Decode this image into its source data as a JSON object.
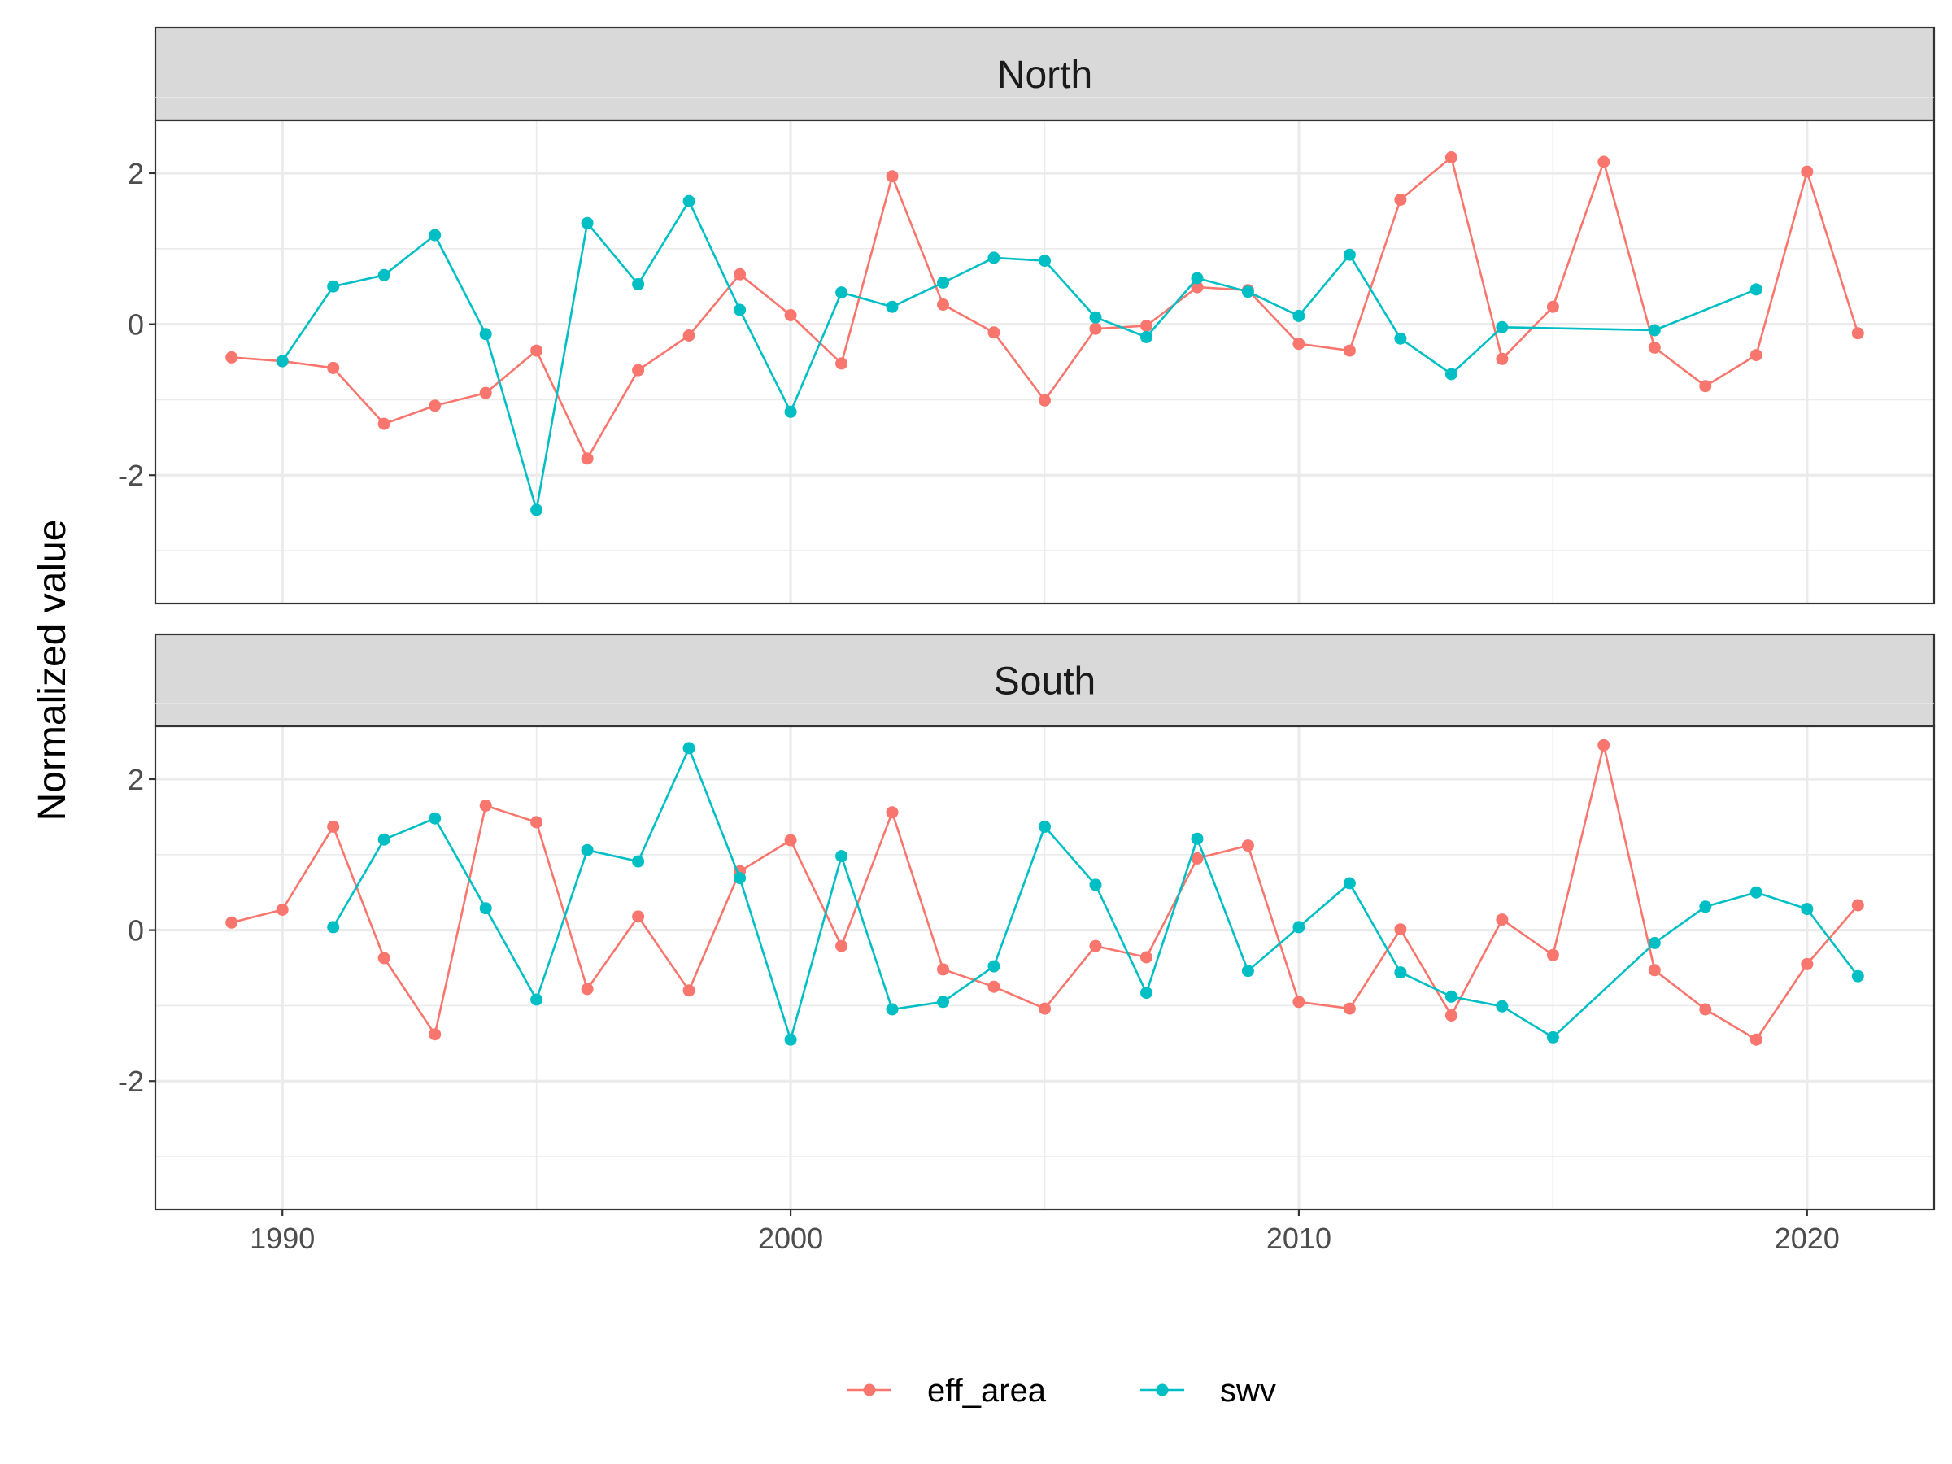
{
  "chart_data": {
    "type": "line",
    "xlabel": "",
    "ylabel": "Normalized value",
    "xlim": [
      1987.5,
      2022.5
    ],
    "ylim": [
      -3.7,
      2.7
    ],
    "x_ticks": [
      1990,
      2000,
      2010,
      2020
    ],
    "y_ticks": [
      2,
      0,
      -2
    ],
    "y_tick_labels": [
      "2",
      "0",
      "-2"
    ],
    "y_minor": [
      3,
      1,
      -1,
      -3
    ],
    "legend": {
      "position": "bottom",
      "entries": [
        "eff_area",
        "swv"
      ]
    },
    "colors": {
      "eff_area": "#F8766D",
      "swv": "#00BFC4"
    },
    "facets": [
      {
        "label": "North",
        "series": [
          {
            "name": "eff_area",
            "x": [
              1989,
              1990,
              1991,
              1992,
              1993,
              1994,
              1995,
              1996,
              1997,
              1998,
              1999,
              2000,
              2001,
              2002,
              2003,
              2004,
              2005,
              2006,
              2007,
              2008,
              2009,
              2010,
              2011,
              2012,
              2013,
              2014,
              2015,
              2016,
              2017,
              2018,
              2019,
              2020,
              2021
            ],
            "y": [
              -0.44,
              -0.49,
              -0.58,
              -1.32,
              -1.08,
              -0.91,
              -0.35,
              -1.78,
              -0.61,
              -0.15,
              0.66,
              0.12,
              -0.52,
              1.96,
              0.26,
              -0.11,
              -1.01,
              -0.06,
              -0.02,
              0.49,
              0.45,
              -0.26,
              -0.35,
              1.65,
              2.21,
              -0.46,
              0.23,
              2.15,
              -0.31,
              -0.82,
              -0.41,
              2.02,
              -0.12
            ]
          },
          {
            "name": "swv",
            "x": [
              1990,
              1991,
              1992,
              1993,
              1994,
              1995,
              1996,
              1997,
              1998,
              1999,
              2000,
              2001,
              2002,
              2003,
              2004,
              2005,
              2006,
              2007,
              2008,
              2009,
              2010,
              2011,
              2012,
              2013,
              2014,
              2017,
              2019
            ],
            "y": [
              -0.49,
              0.5,
              0.65,
              1.18,
              -0.13,
              -2.46,
              1.34,
              0.53,
              1.63,
              0.19,
              -1.16,
              0.42,
              0.23,
              0.55,
              0.88,
              0.84,
              0.09,
              -0.17,
              0.61,
              0.43,
              0.11,
              0.92,
              -0.19,
              -0.66,
              -0.04,
              -0.08,
              0.46
            ]
          }
        ]
      },
      {
        "label": "South",
        "series": [
          {
            "name": "eff_area",
            "x": [
              1989,
              1990,
              1991,
              1992,
              1993,
              1994,
              1995,
              1996,
              1997,
              1998,
              1999,
              2000,
              2001,
              2002,
              2003,
              2004,
              2005,
              2006,
              2007,
              2008,
              2009,
              2010,
              2011,
              2012,
              2013,
              2014,
              2015,
              2016,
              2017,
              2018,
              2019,
              2020,
              2021
            ],
            "y": [
              0.1,
              0.27,
              1.37,
              -0.37,
              -1.38,
              1.65,
              1.43,
              -0.78,
              0.18,
              -0.8,
              0.78,
              1.19,
              -0.21,
              1.56,
              -0.52,
              -0.75,
              -1.04,
              -0.21,
              -0.36,
              0.95,
              1.12,
              -0.95,
              -1.04,
              0.01,
              -1.13,
              0.14,
              -0.33,
              2.45,
              -0.53,
              -1.05,
              -1.45,
              -0.45,
              0.33
            ]
          },
          {
            "name": "swv",
            "x": [
              1991,
              1992,
              1993,
              1994,
              1995,
              1996,
              1997,
              1998,
              1999,
              2000,
              2001,
              2002,
              2003,
              2004,
              2005,
              2006,
              2007,
              2008,
              2009,
              2010,
              2011,
              2012,
              2013,
              2014,
              2015,
              2017,
              2018,
              2019,
              2020,
              2021
            ],
            "y": [
              0.04,
              1.2,
              1.48,
              0.29,
              -0.92,
              1.06,
              0.91,
              2.41,
              0.69,
              -1.45,
              0.98,
              -1.05,
              -0.95,
              -0.48,
              1.37,
              0.6,
              -0.83,
              1.21,
              -0.54,
              0.04,
              0.62,
              -0.56,
              -0.88,
              -1.01,
              -1.42,
              -0.17,
              0.31,
              0.5,
              0.28,
              -0.61
            ]
          }
        ]
      }
    ]
  }
}
